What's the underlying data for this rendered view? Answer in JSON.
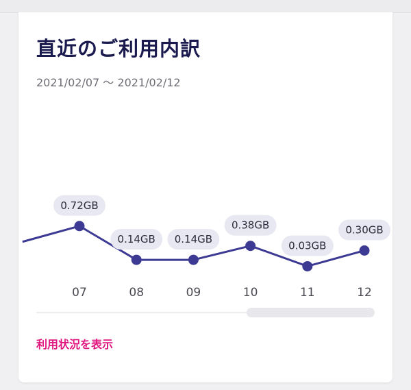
{
  "card": {
    "title": "直近のご利用内訳",
    "period": "2021/02/07 〜 2021/02/12",
    "link_label": "利用状況を表示"
  },
  "colors": {
    "line": "#3d3a94",
    "label_bg": "#e8e8f2",
    "link": "#e0157f",
    "title": "#1a1a4e"
  },
  "chart_data": {
    "type": "line",
    "unit": "GB",
    "categories": [
      "07",
      "08",
      "09",
      "10",
      "11",
      "12"
    ],
    "values": [
      0.72,
      0.14,
      0.14,
      0.38,
      0.03,
      0.3
    ],
    "labels": [
      "0.72GB",
      "0.14GB",
      "0.14GB",
      "0.38GB",
      "0.03GB",
      "0.30GB"
    ],
    "previous_value_estimate": 0.45,
    "grid": false,
    "legend": "none"
  }
}
